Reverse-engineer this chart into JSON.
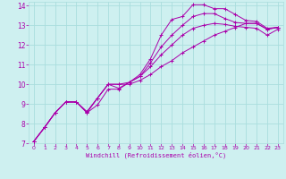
{
  "xlabel": "Windchill (Refroidissement éolien,°C)",
  "bg_color": "#cef0f0",
  "line_color": "#aa00aa",
  "grid_color": "#aadddd",
  "grid_minor_color": "#c8ecec",
  "xlim": [
    -0.5,
    23.5
  ],
  "ylim": [
    7,
    14.2
  ],
  "xticks": [
    0,
    1,
    2,
    3,
    4,
    5,
    6,
    7,
    8,
    9,
    10,
    11,
    12,
    13,
    14,
    15,
    16,
    17,
    18,
    19,
    20,
    21,
    22,
    23
  ],
  "yticks": [
    7,
    8,
    9,
    10,
    11,
    12,
    13,
    14
  ],
  "lines": [
    {
      "x": [
        0,
        1,
        2,
        3,
        4,
        5,
        6,
        7,
        8,
        9,
        10,
        11,
        12,
        13,
        14,
        15,
        16,
        17,
        18,
        19,
        20,
        21,
        22,
        23
      ],
      "y": [
        7.1,
        7.8,
        8.55,
        9.1,
        9.1,
        8.6,
        9.3,
        10.0,
        10.0,
        10.0,
        10.2,
        10.5,
        10.9,
        11.2,
        11.6,
        11.9,
        12.2,
        12.5,
        12.7,
        12.9,
        13.1,
        13.1,
        12.8,
        12.9
      ]
    },
    {
      "x": [
        0,
        1,
        2,
        3,
        4,
        5,
        6,
        7,
        8,
        9,
        10,
        11,
        12,
        13,
        14,
        15,
        16,
        17,
        18,
        19,
        20,
        21,
        22,
        23
      ],
      "y": [
        7.1,
        7.8,
        8.55,
        9.1,
        9.1,
        8.6,
        9.3,
        10.0,
        10.0,
        10.1,
        10.5,
        11.3,
        12.5,
        13.3,
        13.45,
        14.05,
        14.05,
        13.85,
        13.85,
        13.55,
        13.25,
        13.2,
        12.85,
        12.9
      ]
    },
    {
      "x": [
        0,
        1,
        2,
        3,
        4,
        5,
        6,
        7,
        8,
        9,
        10,
        11,
        12,
        13,
        14,
        15,
        16,
        17,
        18,
        19,
        20,
        21,
        22,
        23
      ],
      "y": [
        7.1,
        7.8,
        8.55,
        9.1,
        9.1,
        8.55,
        9.3,
        10.0,
        9.8,
        10.1,
        10.4,
        11.1,
        11.9,
        12.5,
        13.0,
        13.45,
        13.6,
        13.6,
        13.35,
        13.15,
        13.1,
        13.1,
        12.8,
        12.9
      ]
    },
    {
      "x": [
        0,
        1,
        2,
        3,
        4,
        5,
        6,
        7,
        8,
        9,
        10,
        11,
        12,
        13,
        14,
        15,
        16,
        17,
        18,
        19,
        20,
        21,
        22,
        23
      ],
      "y": [
        7.1,
        7.8,
        8.55,
        9.1,
        9.1,
        8.55,
        8.95,
        9.75,
        9.75,
        10.1,
        10.4,
        10.9,
        11.5,
        12.0,
        12.5,
        12.85,
        13.0,
        13.1,
        13.05,
        12.95,
        12.9,
        12.85,
        12.5,
        12.8
      ]
    }
  ]
}
